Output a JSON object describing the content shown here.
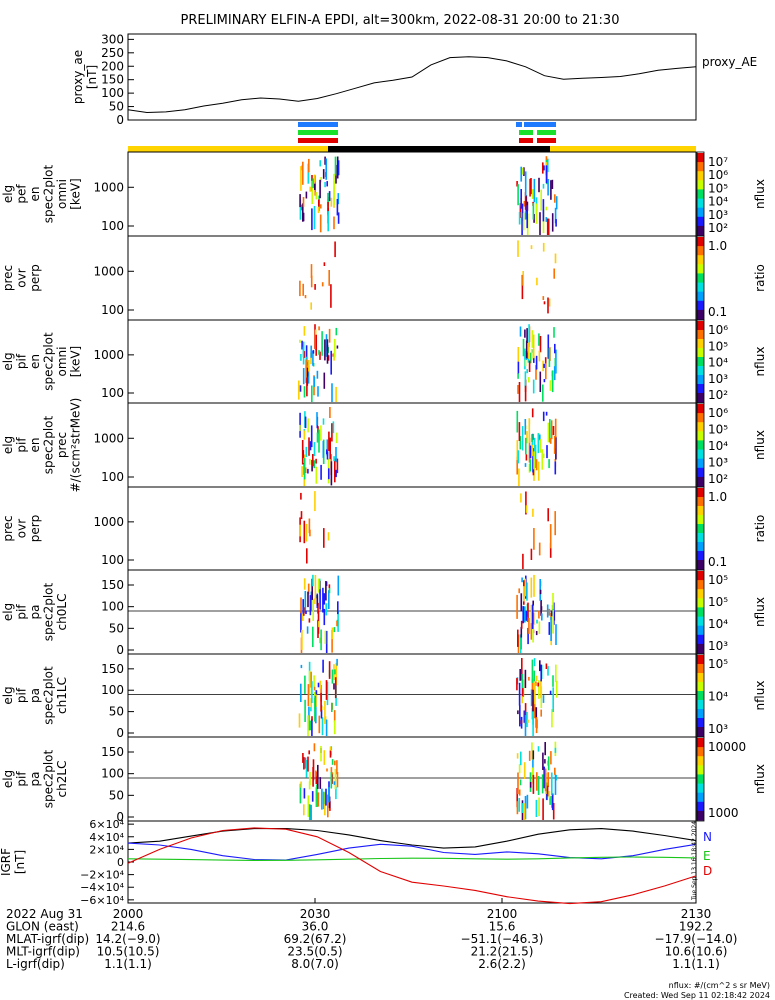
{
  "title": "PRELIMINARY ELFIN-A EPDI, alt=300km, 2022-08-31 20:00 to 21:30",
  "colors": {
    "yellow": "#ffd400",
    "black": "#000000",
    "blue": "#1e7bff",
    "green": "#19e02a",
    "red": "#e00000",
    "n_color": "#1a1aff",
    "e_color": "#19c519",
    "d_color": "#e00000"
  },
  "proxy_ae": {
    "ylabel_lines": [
      "proxy_ae",
      "[nT]"
    ],
    "series_label": "proxy_AE",
    "yticks": [
      "300",
      "250",
      "200",
      "150",
      "100",
      "50",
      "0"
    ],
    "ylim": [
      0,
      320
    ],
    "x": [
      0,
      3,
      6,
      9,
      12,
      15,
      18,
      21,
      24,
      27,
      30,
      33,
      36,
      39,
      42,
      45,
      48,
      51,
      54,
      57,
      60,
      63,
      66,
      69,
      72,
      75,
      78,
      81,
      84,
      87,
      90
    ],
    "y": [
      38,
      28,
      30,
      38,
      52,
      62,
      75,
      82,
      78,
      70,
      80,
      98,
      118,
      138,
      148,
      160,
      205,
      232,
      235,
      232,
      220,
      198,
      165,
      152,
      155,
      158,
      162,
      172,
      185,
      192,
      198
    ]
  },
  "panels": [
    {
      "label_lines": [
        "elg",
        "pef",
        "en",
        "spec2plot",
        "omni",
        "[keV]"
      ],
      "yticks": [
        "1000",
        "100"
      ],
      "cbar_labels": [
        "10⁷",
        "10⁶",
        "10⁵",
        "10⁴",
        "10³",
        "10²"
      ],
      "cbar_title": "nflux"
    },
    {
      "label_lines": [
        "prec",
        "ovr",
        "perp"
      ],
      "yticks": [
        "1000",
        "100"
      ],
      "cbar_labels": [
        "1.0",
        "0.1"
      ],
      "cbar_title": "ratio"
    },
    {
      "label_lines": [
        "elg",
        "pif",
        "en",
        "spec2plot",
        "omni",
        "[keV]"
      ],
      "yticks": [
        "1000",
        "100"
      ],
      "cbar_labels": [
        "10⁶",
        "10⁵",
        "10⁴",
        "10³",
        "10²"
      ],
      "cbar_title": "nflux"
    },
    {
      "label_lines": [
        "elg",
        "pif",
        "en",
        "spec2plot",
        "prec",
        "#/(scm²strMeV)"
      ],
      "yticks": [
        "1000",
        "100"
      ],
      "cbar_labels": [
        "10⁶",
        "10⁵",
        "10⁴",
        "10³",
        "10²"
      ],
      "cbar_title": "nflux"
    },
    {
      "label_lines": [
        "prec",
        "ovr",
        "perp"
      ],
      "yticks": [
        "1000",
        "100"
      ],
      "cbar_labels": [
        "1.0",
        "0.1"
      ],
      "cbar_title": "ratio"
    },
    {
      "label_lines": [
        "elg",
        "pif",
        "pa",
        "spec2plot",
        "ch0LC"
      ],
      "yticks": [
        "150",
        "100",
        "50",
        "0"
      ],
      "cbar_labels": [
        "10⁵",
        "10⁵",
        "10⁴",
        "10³"
      ],
      "cbar_title": "nflux"
    },
    {
      "label_lines": [
        "elg",
        "pif",
        "pa",
        "spec2plot",
        "ch1LC"
      ],
      "yticks": [
        "150",
        "100",
        "50",
        "0"
      ],
      "cbar_labels": [
        "10⁵",
        "10⁴",
        "10³"
      ],
      "cbar_title": "nflux"
    },
    {
      "label_lines": [
        "elg",
        "pif",
        "pa",
        "spec2plot",
        "ch2LC"
      ],
      "yticks": [
        "150",
        "100",
        "50",
        "0"
      ],
      "cbar_labels": [
        "10000",
        "1000"
      ],
      "cbar_title": "nflux"
    }
  ],
  "igrf": {
    "ylabel_lines": [
      "IGRF",
      "[nT]"
    ],
    "yticks": [
      "6×10⁴",
      "4×10⁴",
      "2×10⁴",
      "0",
      "−2×10⁴",
      "−4×10⁴",
      "−6×10⁴"
    ],
    "ylim": [
      -65000,
      65000
    ],
    "legend": [
      "N",
      "E",
      "D"
    ],
    "stamp": "Tue Sep 13 16:18:42 2024",
    "x": [
      0,
      5,
      10,
      15,
      20,
      25,
      30,
      35,
      40,
      45,
      50,
      55,
      60,
      65,
      70,
      75,
      80,
      85,
      90
    ],
    "total": [
      30000,
      33000,
      41000,
      49000,
      53000,
      53000,
      50000,
      43000,
      34000,
      27000,
      22000,
      24000,
      33000,
      44000,
      51000,
      53000,
      49000,
      42000,
      34000
    ],
    "north": [
      30000,
      27000,
      20000,
      10000,
      4000,
      3000,
      12000,
      22000,
      28000,
      25000,
      15000,
      12000,
      16000,
      13000,
      7000,
      5000,
      10000,
      20000,
      28000
    ],
    "east": [
      5000,
      4500,
      3800,
      3000,
      2600,
      2700,
      3500,
      4500,
      5500,
      6000,
      5800,
      5000,
      4500,
      5000,
      6500,
      7500,
      8000,
      7500,
      6500
    ],
    "down": [
      -2000,
      20000,
      38000,
      50000,
      54000,
      52000,
      40000,
      15000,
      -15000,
      -32000,
      -38000,
      -45000,
      -55000,
      -62000,
      -66000,
      -63000,
      -52000,
      -38000,
      -22000
    ]
  },
  "footer": {
    "rows": [
      {
        "label": "2022 Aug 31",
        "values": [
          "2000",
          "2030",
          "2100",
          "2130"
        ]
      },
      {
        "label": "GLON (east)",
        "values": [
          "214.6",
          "36.0",
          "15.6",
          "192.2"
        ]
      },
      {
        "label": "MLAT-igrf(dip)",
        "values": [
          "14.2(−9.0)",
          "69.2(67.2)",
          "−51.1(−46.3)",
          "−17.9(−14.0)"
        ]
      },
      {
        "label": "MLT-igrf(dip)",
        "values": [
          "10.5(10.5)",
          "23.5(0.5)",
          "21.2(21.5)",
          "10.6(10.6)"
        ]
      },
      {
        "label": "L-igrf(dip)",
        "values": [
          "1.1(1.1)",
          "8.0(7.0)",
          "2.6(2.2)",
          "1.1(1.1)"
        ]
      }
    ],
    "units_note": "nflux: #/(cm^2 s sr MeV)",
    "created": "Created: Wed Sep 11 02:18:42 2024"
  }
}
